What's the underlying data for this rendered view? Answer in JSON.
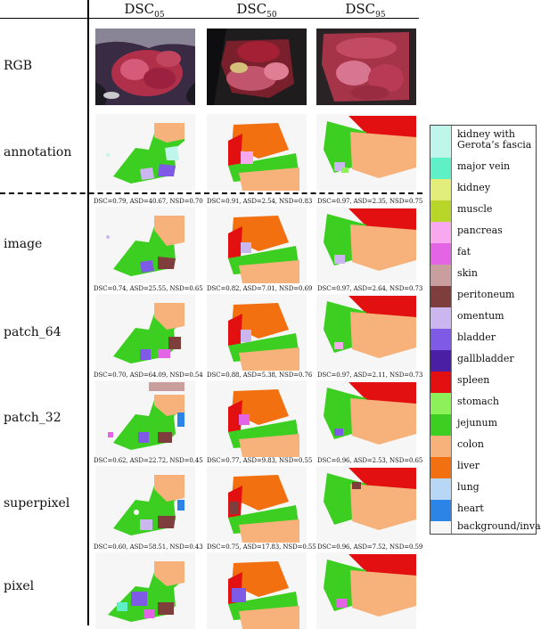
{
  "columns": [
    {
      "base": "DSC",
      "sub": "05"
    },
    {
      "base": "DSC",
      "sub": "50"
    },
    {
      "base": "DSC",
      "sub": "95"
    }
  ],
  "rows": {
    "rgb": "RGB",
    "annotation": "annotation",
    "image": "image",
    "patch64": "patch_64",
    "patch32": "patch_32",
    "superpixel": "superpixel",
    "pixel": "pixel"
  },
  "metrics": {
    "image": [
      "DSC=0.79, ASD=40.67, NSD=0.70",
      "DSC=0.91, ASD=2.54, NSD=0.83",
      "DSC=0.97, ASD=2.35, NSD=0.75"
    ],
    "patch64": [
      "DSC=0.74, ASD=25.55, NSD=0.65",
      "DSC=0.82, ASD=7.01, NSD=0.69",
      "DSC=0.97, ASD=2.64, NSD=0.73"
    ],
    "patch32": [
      "DSC=0.70, ASD=64.09, NSD=0.54",
      "DSC=0.88, ASD=5.38, NSD=0.76",
      "DSC=0.97, ASD=2.11, NSD=0.73"
    ],
    "superpixel": [
      "DSC=0.62, ASD=22.72, NSD=0.45",
      "DSC=0.77, ASD=9.83, NSD=0.55",
      "DSC=0.96, ASD=2.53, NSD=0.65"
    ],
    "pixel": [
      "DSC=0.60, ASD=58.51, NSD=0.43",
      "DSC=0.75, ASD=17.83, NSD=0.55",
      "DSC=0.96, ASD=7.52, NSD=0.59"
    ]
  },
  "legend": [
    {
      "label": "kidney with Gerota’s fascia",
      "color": "#bff5ea"
    },
    {
      "label": "major vein",
      "color": "#5ff0c8"
    },
    {
      "label": "kidney",
      "color": "#e3ee7a"
    },
    {
      "label": "muscle",
      "color": "#b8d62a"
    },
    {
      "label": "pancreas",
      "color": "#f8a9ee"
    },
    {
      "label": "fat",
      "color": "#e365e6"
    },
    {
      "label": "skin",
      "color": "#c89e9e"
    },
    {
      "label": "peritoneum",
      "color": "#7e3f3c"
    },
    {
      "label": "omentum",
      "color": "#cbb6f0"
    },
    {
      "label": "bladder",
      "color": "#7e5ae6"
    },
    {
      "label": "gallbladder",
      "color": "#4a1fa3"
    },
    {
      "label": "spleen",
      "color": "#e21010"
    },
    {
      "label": "stomach",
      "color": "#8df25a"
    },
    {
      "label": "jejunum",
      "color": "#3ccf22"
    },
    {
      "label": "colon",
      "color": "#f6b27a"
    },
    {
      "label": "liver",
      "color": "#f2700f"
    },
    {
      "label": "lung",
      "color": "#b7d7f5"
    },
    {
      "label": "heart",
      "color": "#2c85e6"
    },
    {
      "label": "background/invalid",
      "color": "#f6f6f6"
    }
  ]
}
